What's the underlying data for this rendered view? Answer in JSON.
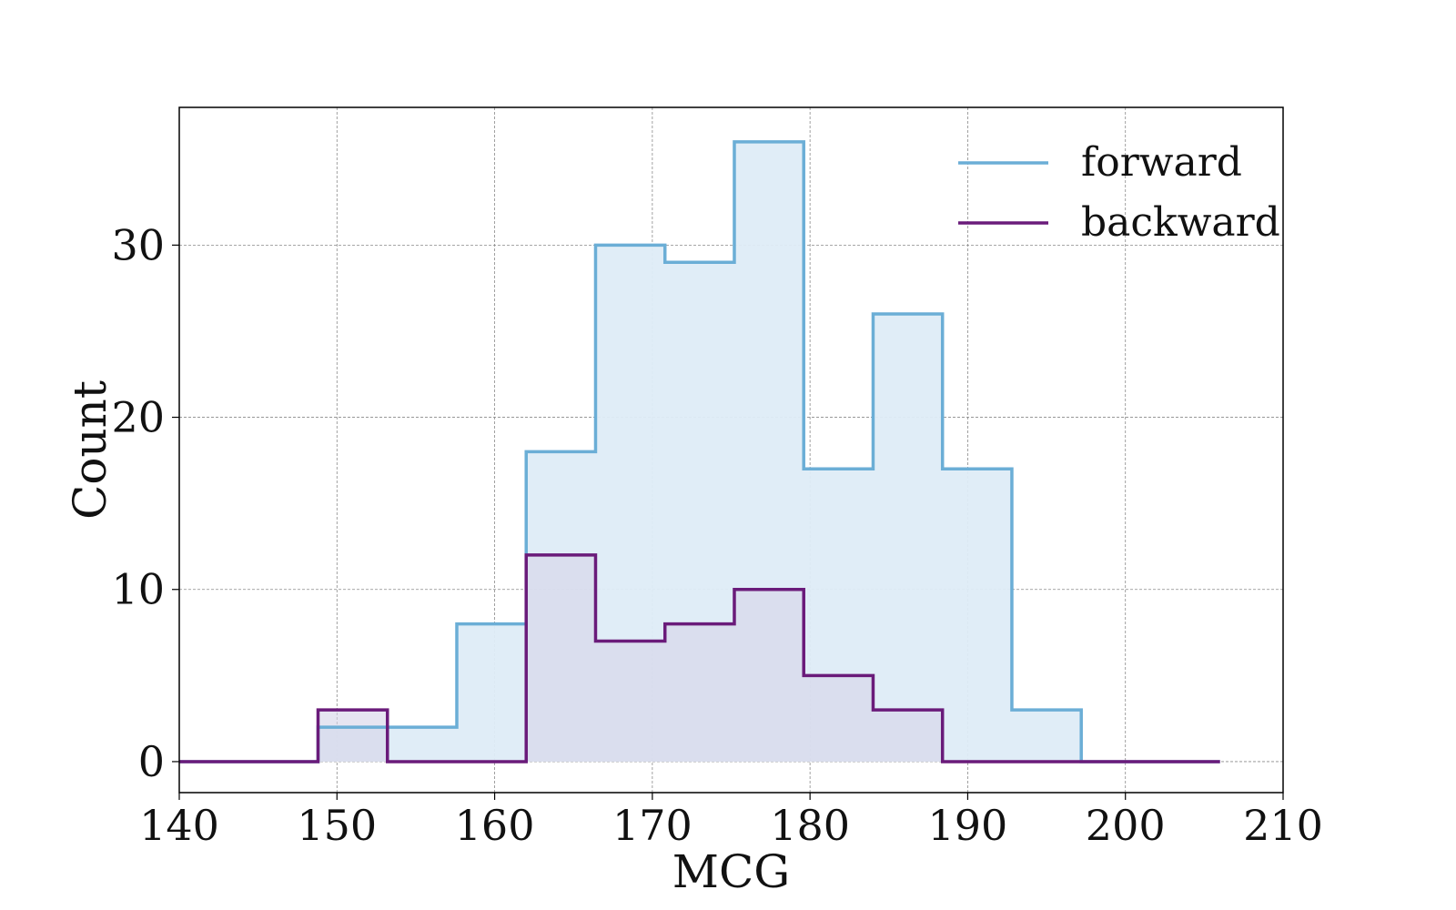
{
  "chart_data": {
    "type": "histogram",
    "title": "",
    "xlabel": "MCG",
    "ylabel": "Count",
    "xlim": [
      140,
      210
    ],
    "ylim": [
      -1.8,
      38
    ],
    "xticks": [
      140,
      150,
      160,
      170,
      180,
      190,
      200,
      210
    ],
    "yticks": [
      0,
      10,
      20,
      30
    ],
    "grid": true,
    "legend_position": "top-right",
    "bin_edges": [
      140.0,
      144.4,
      148.8,
      153.2,
      157.6,
      162.0,
      166.4,
      170.8,
      175.2,
      179.6,
      184.0,
      188.4,
      192.8,
      197.2,
      201.6,
      206.0
    ],
    "series": [
      {
        "name": "forward",
        "color": "#6baed6",
        "fill": "#deecf7",
        "values": [
          0,
          0,
          2,
          2,
          8,
          18,
          30,
          29,
          36,
          17,
          26,
          17,
          3,
          0,
          0
        ]
      },
      {
        "name": "backward",
        "color": "#6a1b7a",
        "fill": "#d6d4e8",
        "values": [
          0,
          0,
          3,
          0,
          0,
          12,
          7,
          8,
          10,
          5,
          3,
          0,
          0,
          0,
          0
        ]
      }
    ]
  }
}
